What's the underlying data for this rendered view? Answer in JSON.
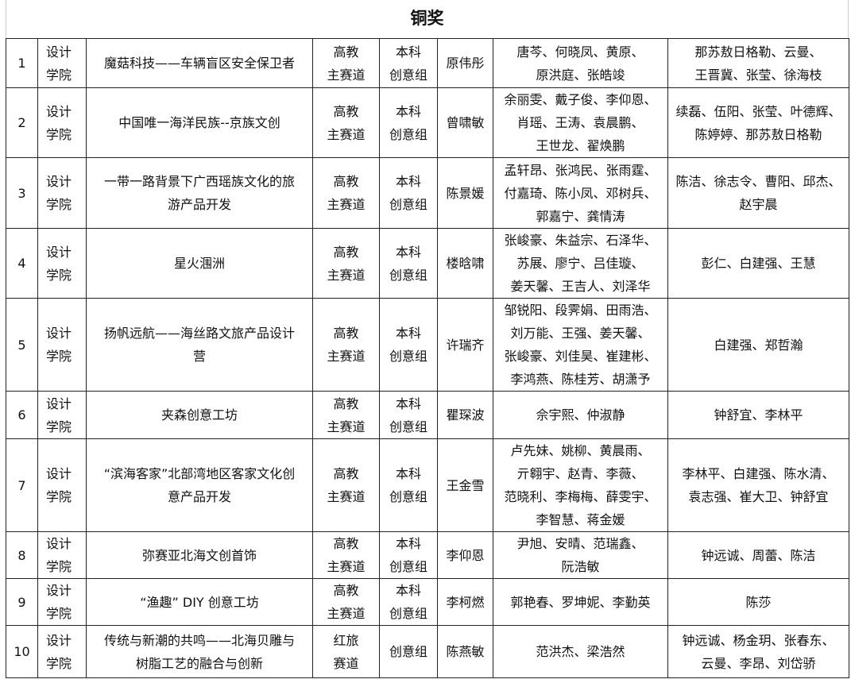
{
  "title": "铜奖",
  "rows": [
    {
      "no": "1",
      "college": "设计\n学院",
      "project": "魔菇科技——车辆盲区安全保卫者",
      "track": "高教\n主赛道",
      "group": "本科\n创意组",
      "leader": "原伟彤",
      "members": "唐芩、何晓凤、黄原、\n原洪庭、张皓竣",
      "advisors": "那苏敖日格勒、云曼、\n王晋冀、张莹、徐海枝"
    },
    {
      "no": "2",
      "college": "设计\n学院",
      "project": "中国唯一海洋民族--京族文创",
      "track": "高教\n主赛道",
      "group": "本科\n创意组",
      "leader": "曾啸敏",
      "members": "余丽雯、戴子俊、李仰恩、\n肖瑶、王涛、袁晨鹏、\n王世龙、翟焕鹏",
      "advisors": "续磊、伍阳、张莹、叶德辉、\n陈婷婷、那苏敖日格勒"
    },
    {
      "no": "3",
      "college": "设计\n学院",
      "project": "一带一路背景下广西瑶族文化的旅\n游产品开发",
      "track": "高教\n主赛道",
      "group": "本科\n创意组",
      "leader": "陈景媛",
      "members": "孟轩昂、张鸿民、张雨霆、\n付嘉琦、陈小凤、邓树兵、\n郭嘉宁、龚情涛",
      "advisors": "陈洁、徐志令、曹阳、邱杰、\n赵宇晨"
    },
    {
      "no": "4",
      "college": "设计\n学院",
      "project": "星火涠洲",
      "track": "高教\n主赛道",
      "group": "本科\n创意组",
      "leader": "楼晗啸",
      "members": "张峻豪、朱益宗、石泽华、\n苏展、廖宁、吕佳璇、\n姜天馨、王吉人、刘泽华",
      "advisors": "彭仁、白建强、王慧"
    },
    {
      "no": "5",
      "college": "设计\n学院",
      "project": "扬帆远航——海丝路文旅产品设计\n营",
      "track": "高教\n主赛道",
      "group": "本科\n创意组",
      "leader": "许瑞齐",
      "members": "邹锐阳、段霁娟、田雨浩、\n刘万能、王强、姜天馨、\n张峻豪、刘佳昊、崔建彬、\n李鸿燕、陈桂芳、胡潇予",
      "advisors": "白建强、郑哲瀚"
    },
    {
      "no": "6",
      "college": "设计\n学院",
      "project": "夹森创意工坊",
      "track": "高教\n主赛道",
      "group": "本科\n创意组",
      "leader": "瞿琛波",
      "members": "佘宇熙、仲淑静",
      "advisors": "钟舒宜、李林平"
    },
    {
      "no": "7",
      "college": "设计\n学院",
      "project": "“滨海客家”北部湾地区客家文化创\n意产品开发",
      "track": "高教\n主赛道",
      "group": "本科\n创意组",
      "leader": "王金雪",
      "members": "卢先妹、姚柳、黄晨雨、\n亓翱宇、赵青、李薇、\n范晓利、李梅梅、薛雯宇、\n李智慧、蒋金媛",
      "advisors": "李林平、白建强、陈水清、\n袁志强、崔大卫、钟舒宜"
    },
    {
      "no": "8",
      "college": "设计\n学院",
      "project": "弥赛亚北海文创首饰",
      "track": "高教\n主赛道",
      "group": "本科\n创意组",
      "leader": "李仰恩",
      "members": "尹旭、安晴、范瑞鑫、\n阮浩敏",
      "advisors": "钟远诚、周蕾、陈洁"
    },
    {
      "no": "9",
      "college": "设计\n学院",
      "project": "“渔趣” DIY 创意工坊",
      "track": "高教\n主赛道",
      "group": "本科\n创意组",
      "leader": "李柯燃",
      "members": "郭艳春、罗坤妮、李勤英",
      "advisors": "陈莎"
    },
    {
      "no": "10",
      "college": "设计\n学院",
      "project": "传统与新潮的共鸣——北海贝雕与\n树脂工艺的融合与创新",
      "track": "红旅\n赛道",
      "group": "创意组",
      "leader": "陈燕敏",
      "members": "范洪杰、梁浩然",
      "advisors": "钟远诚、杨金玥、张春东、\n云曼、李昂、刘岱骄"
    }
  ]
}
